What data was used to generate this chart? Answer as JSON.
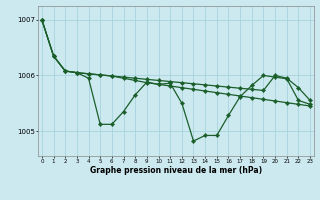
{
  "background_color": "#cce9f0",
  "grid_color": "#a8d4de",
  "line_color": "#1a5e2a",
  "title": "Graphe pression niveau de la mer (hPa)",
  "hours": [
    0,
    1,
    2,
    3,
    4,
    5,
    6,
    7,
    8,
    9,
    10,
    11,
    12,
    13,
    14,
    15,
    16,
    17,
    18,
    19,
    20,
    21,
    22,
    23
  ],
  "ylim": [
    1004.55,
    1007.25
  ],
  "yticks": [
    1005,
    1006,
    1007
  ],
  "series_flat": [
    1007.0,
    1006.35,
    1006.08,
    1006.05,
    1006.03,
    1006.01,
    1005.99,
    1005.97,
    1005.95,
    1005.93,
    1005.91,
    1005.89,
    1005.87,
    1005.85,
    1005.83,
    1005.81,
    1005.79,
    1005.77,
    1005.75,
    1005.73,
    1006.0,
    1005.95,
    1005.78,
    1005.55
  ],
  "series_mid": [
    1007.0,
    1006.35,
    1006.08,
    1006.05,
    1006.03,
    1006.01,
    1005.99,
    1005.95,
    1005.91,
    1005.87,
    1005.84,
    1005.81,
    1005.78,
    1005.75,
    1005.72,
    1005.69,
    1005.66,
    1005.63,
    1005.6,
    1005.57,
    1005.54,
    1005.51,
    1005.48,
    1005.45
  ],
  "series_zigzag": [
    1007.0,
    1006.35,
    1006.08,
    1006.05,
    1005.95,
    1005.12,
    1005.12,
    1005.35,
    1005.65,
    1005.88,
    1005.84,
    1005.86,
    1005.5,
    1004.82,
    1004.92,
    1004.92,
    1005.28,
    1005.62,
    1005.82,
    1006.0,
    1005.97,
    1005.94,
    1005.55,
    1005.48
  ]
}
